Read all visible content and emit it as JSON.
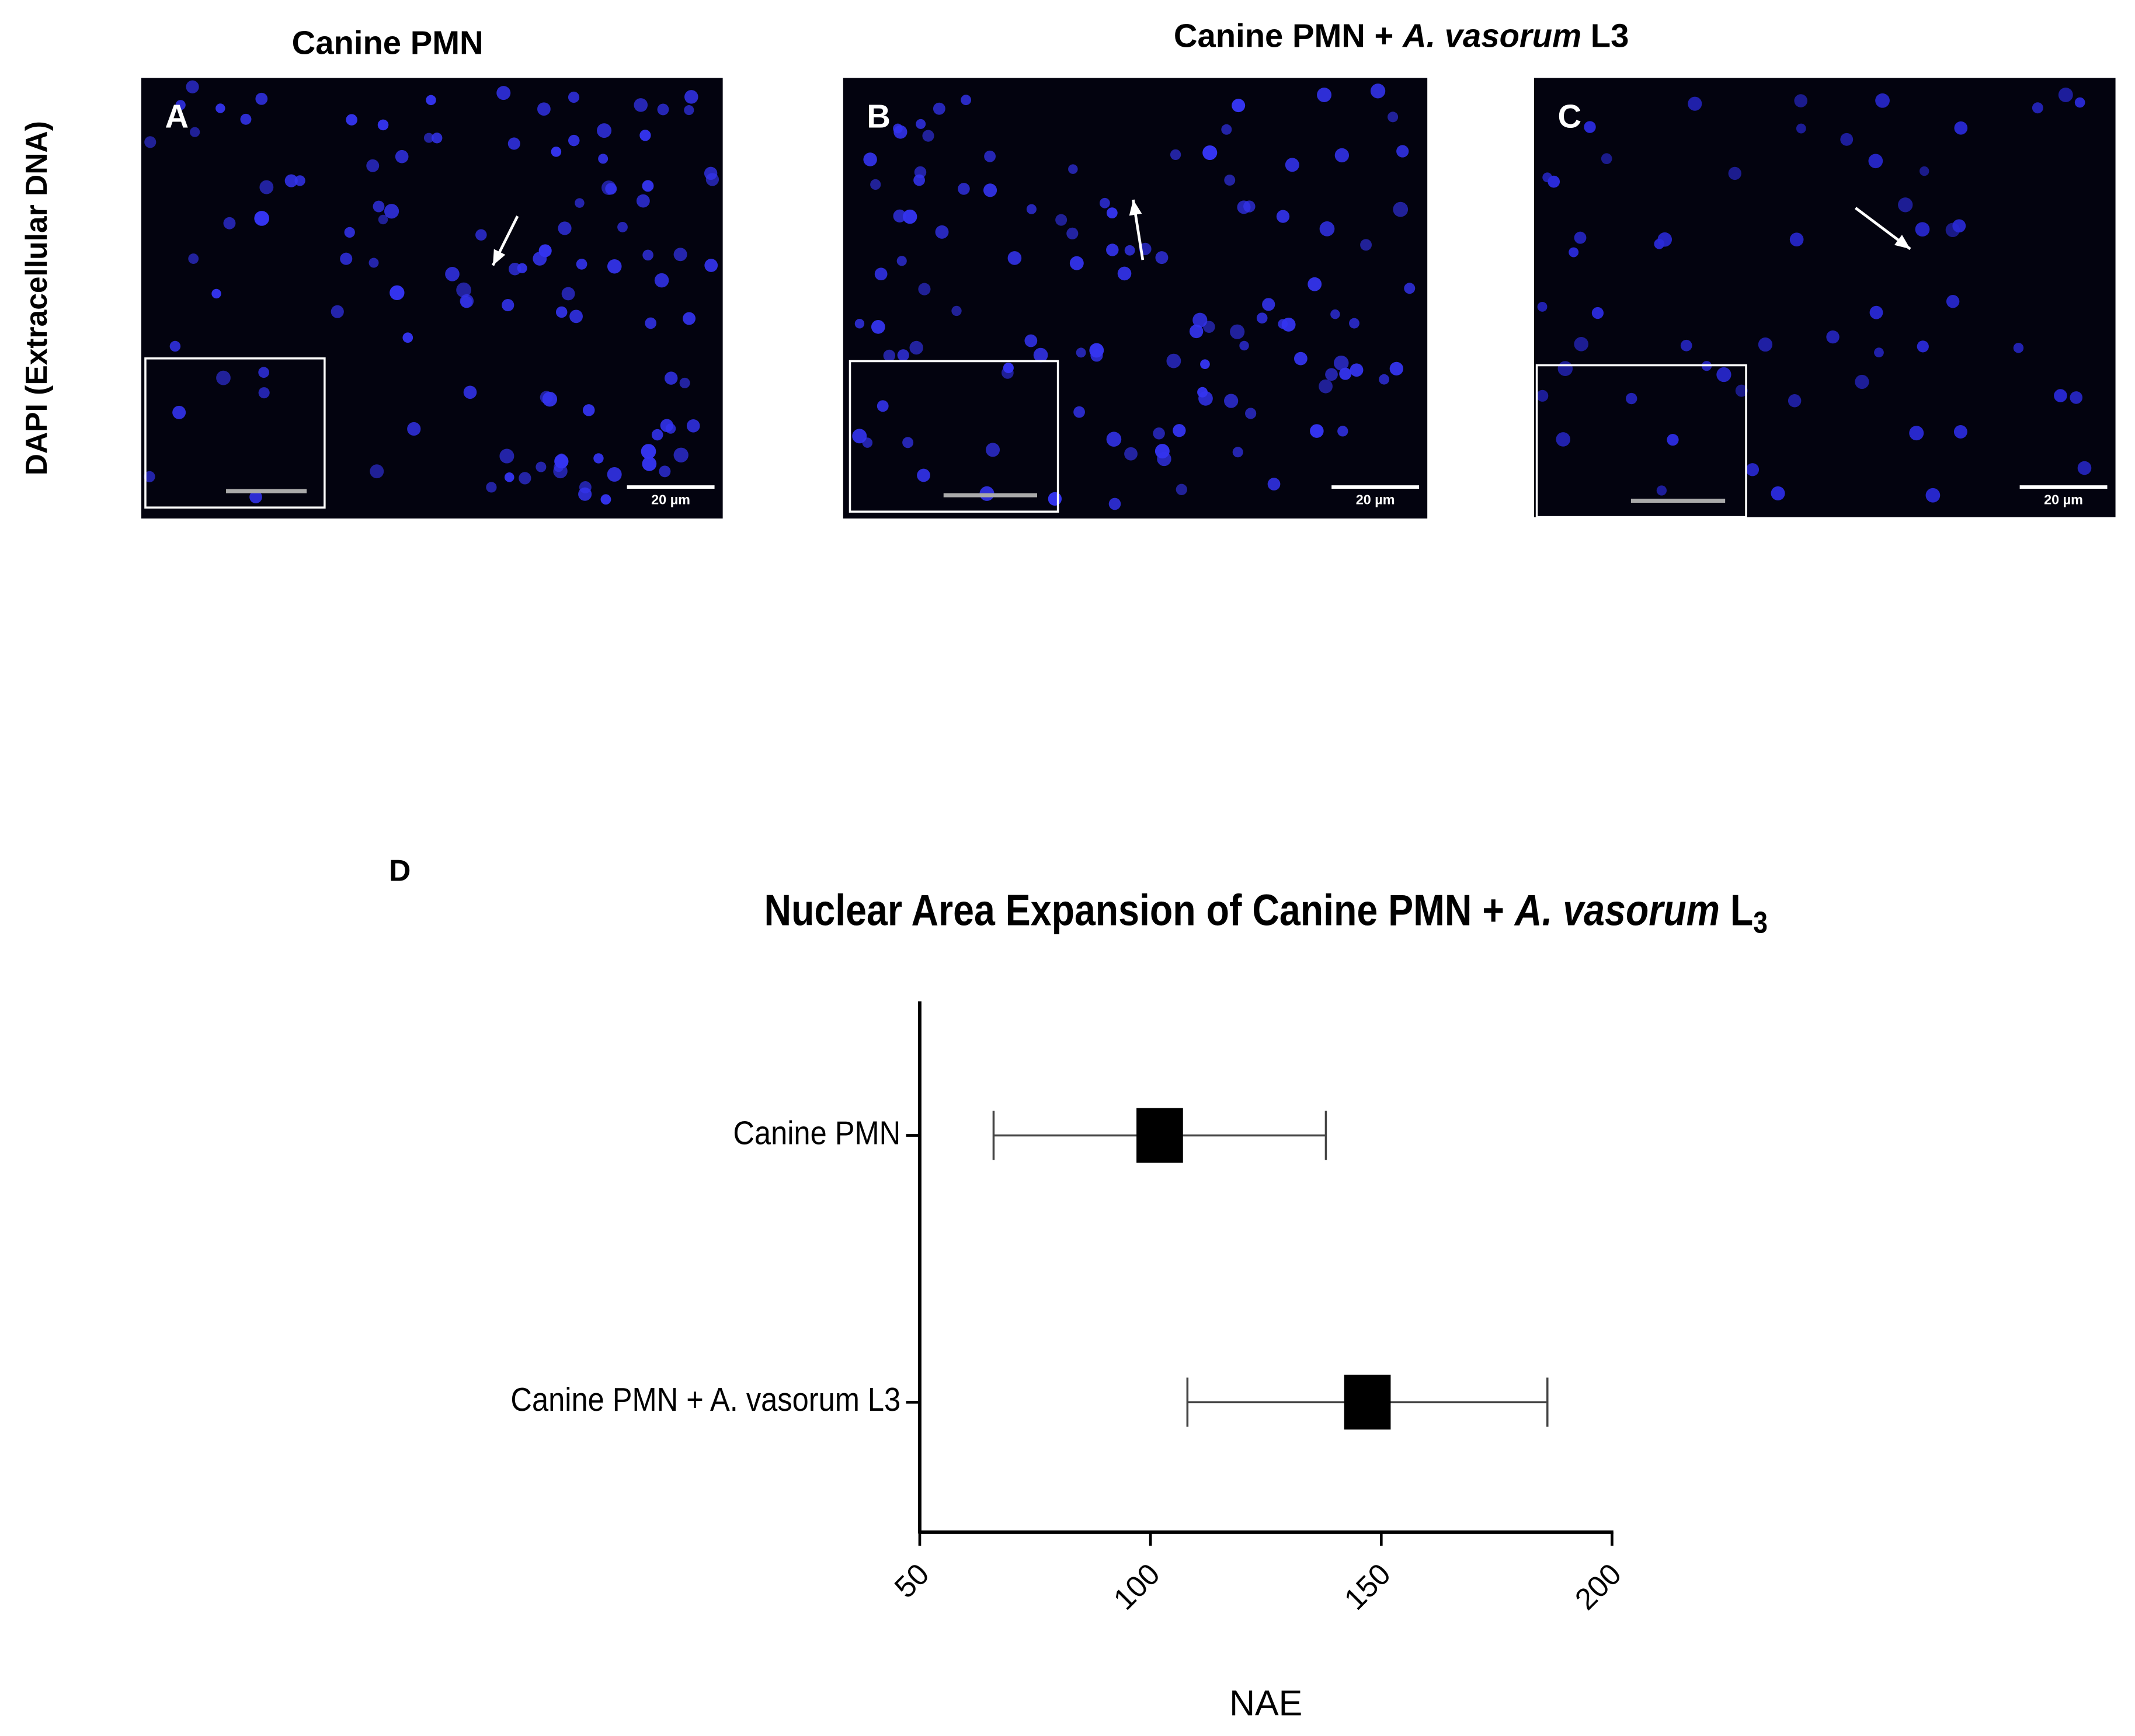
{
  "figure": {
    "row_label": "DAPI  (Extracellular DNA)",
    "column_titles": [
      [
        "Canine PMN"
      ],
      [
        "Canine PMN + ",
        "A. vasorum",
        " L3"
      ]
    ],
    "panels": [
      {
        "letter": "A",
        "scale_bar": "20 µm"
      },
      {
        "letter": "B",
        "scale_bar": "20 µm"
      },
      {
        "letter": "C",
        "scale_bar": "20 µm"
      }
    ],
    "chart_letter": "D"
  },
  "chart_data": {
    "type": "forest",
    "title": [
      "Nuclear Area Expansion of  Canine PMN + ",
      "A. vasorum",
      " L",
      "3"
    ],
    "categories": [
      "Canine PMN",
      "Canine PMN + A. vasorum L3"
    ],
    "values": [
      102,
      147
    ],
    "lower": [
      66,
      108
    ],
    "upper": [
      138,
      186
    ],
    "color": "#000000",
    "xlim": [
      50,
      200
    ],
    "xticks": [
      50,
      100,
      150,
      200
    ],
    "x_label": "NAE"
  }
}
